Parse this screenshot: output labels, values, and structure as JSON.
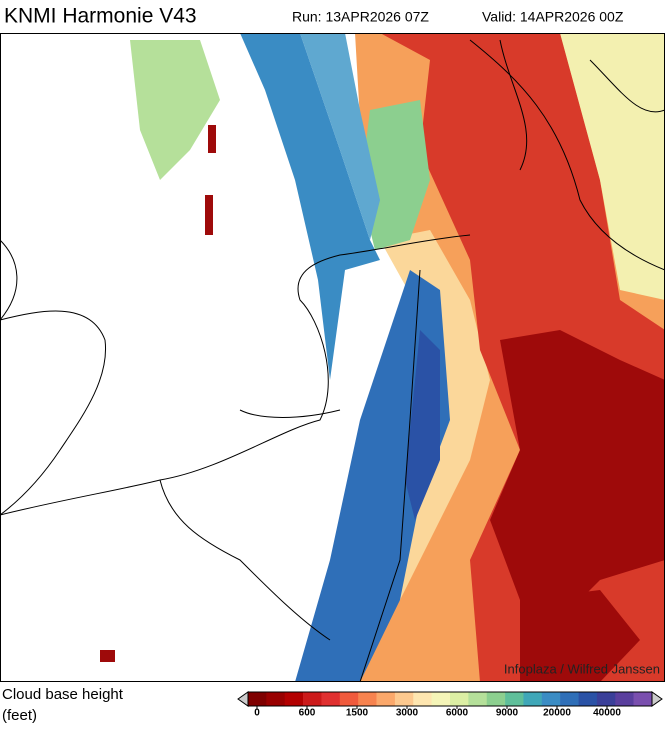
{
  "header": {
    "title": "KNMI Harmonie V43",
    "run": "Run: 13APR2026 07Z",
    "valid": "Valid: 14APR2026 00Z"
  },
  "legend": {
    "title": "Cloud base height",
    "unit": "(feet)",
    "ticks": [
      0,
      600,
      1500,
      3000,
      6000,
      9000,
      20000,
      40000
    ],
    "colors": [
      "#7f0000",
      "#990000",
      "#b30000",
      "#cc1a1a",
      "#e03030",
      "#f05a3c",
      "#f7834f",
      "#fba86b",
      "#fdc98f",
      "#fee6b0",
      "#f5f5b8",
      "#dcefa4",
      "#b5e09a",
      "#8ccf8f",
      "#5fbf9a",
      "#3fa7b8",
      "#3a8cc4",
      "#2f6fb8",
      "#2a52a6",
      "#3a3f99",
      "#5a3f9e",
      "#7a4fae"
    ]
  },
  "credit": "Infoplaza / Wilfred Janssen"
}
